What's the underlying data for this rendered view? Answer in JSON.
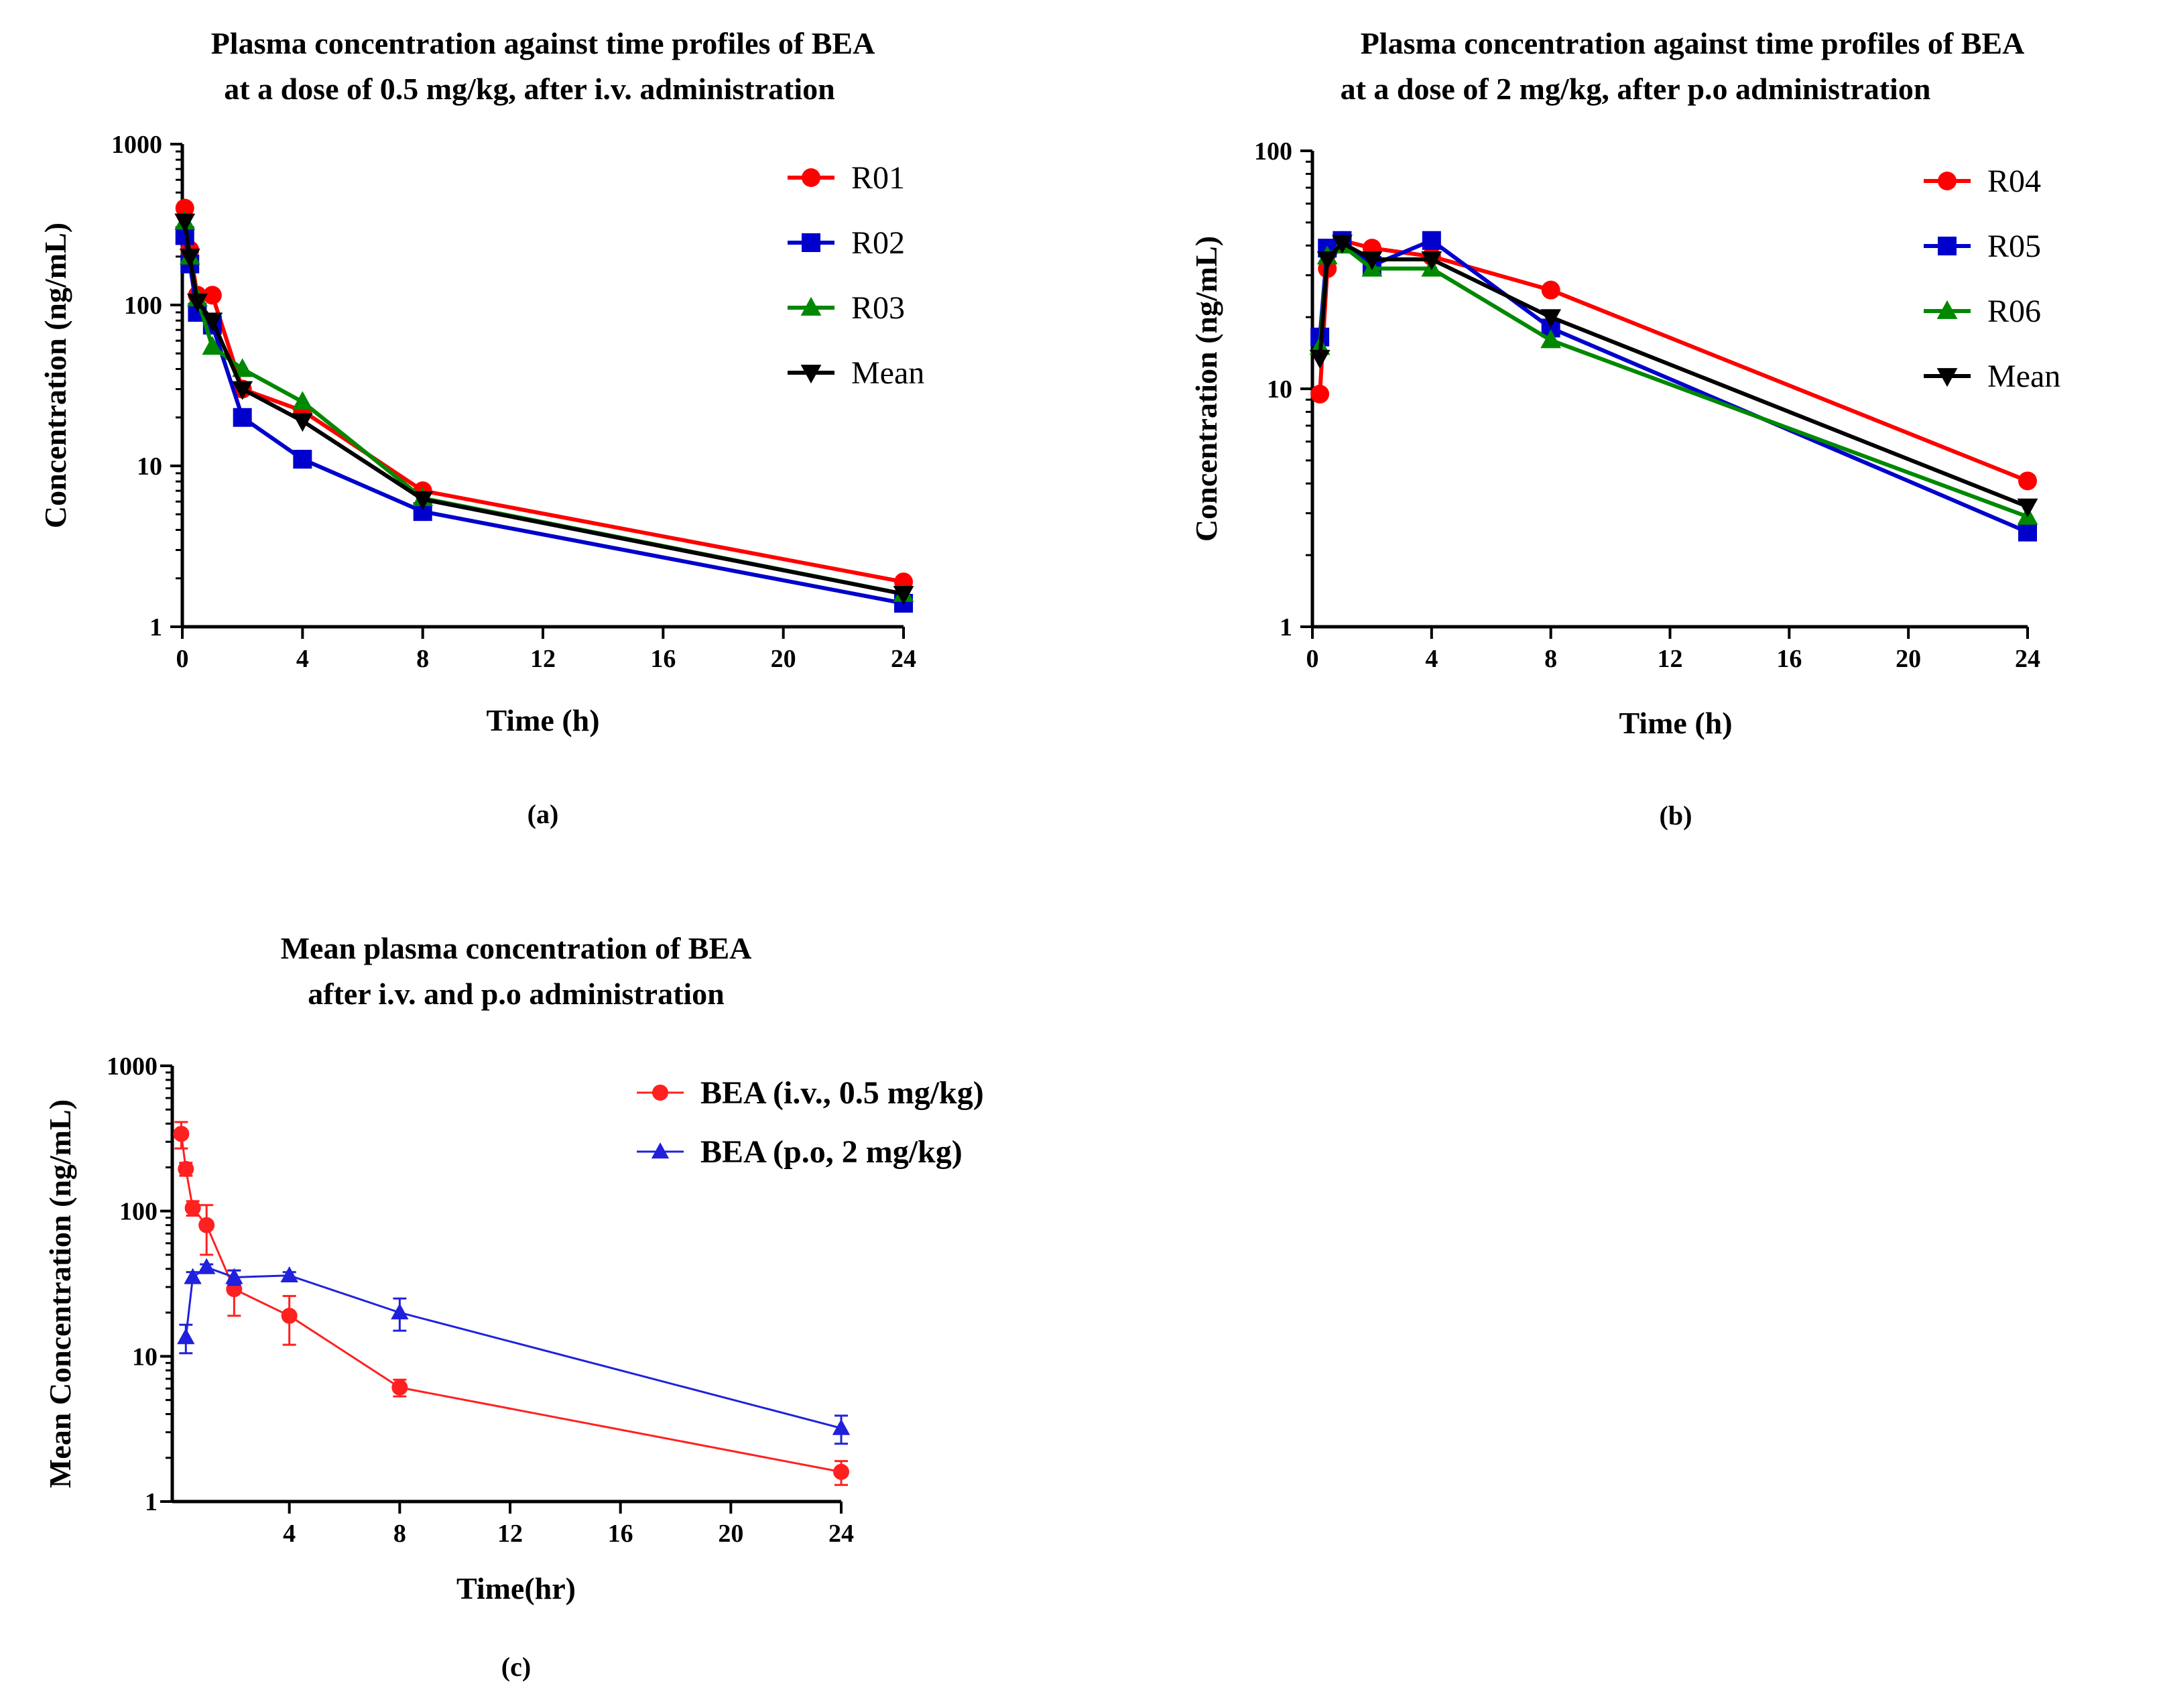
{
  "chart_data": [
    {
      "id": "a",
      "type": "line",
      "panel_label": "(a)",
      "title_lines": [
        "Plasma concentration against time profiles of BEA",
        "at a dose of 0.5 mg/kg, after i.v. administration"
      ],
      "xlabel": "Time (h)",
      "ylabel": "Concentration (ng/mL)",
      "xlim": [
        0,
        24
      ],
      "ylim": [
        1,
        1000
      ],
      "yscale": "log",
      "xticks": [
        0,
        4,
        8,
        12,
        16,
        20,
        24
      ],
      "yticks": [
        1,
        10,
        100,
        1000
      ],
      "ytick_labels": [
        "1",
        "10",
        "100",
        "1000"
      ],
      "legend_position": "top-right",
      "series": [
        {
          "name": "R01",
          "color": "#ff0000",
          "marker": "circle",
          "x": [
            0.083,
            0.25,
            0.5,
            1,
            2,
            4,
            8,
            24
          ],
          "y": [
            400,
            220,
            115,
            115,
            30,
            22,
            7,
            1.9
          ]
        },
        {
          "name": "R02",
          "color": "#0000cc",
          "marker": "square",
          "x": [
            0.083,
            0.25,
            0.5,
            1,
            2,
            4,
            8,
            24
          ],
          "y": [
            270,
            180,
            90,
            75,
            20,
            11,
            5.2,
            1.4
          ]
        },
        {
          "name": "R03",
          "color": "#008800",
          "marker": "triangle-up",
          "x": [
            0.083,
            0.25,
            0.5,
            1,
            2,
            4,
            8,
            24
          ],
          "y": [
            330,
            200,
            110,
            55,
            40,
            25,
            6.3,
            1.6
          ]
        },
        {
          "name": "Mean",
          "color": "#000000",
          "marker": "triangle-down",
          "x": [
            0.083,
            0.25,
            0.5,
            1,
            2,
            4,
            8,
            24
          ],
          "y": [
            330,
            200,
            105,
            80,
            30,
            19,
            6.2,
            1.6
          ]
        }
      ]
    },
    {
      "id": "b",
      "type": "line",
      "panel_label": "(b)",
      "title_lines": [
        "Plasma concentration against time profiles of BEA",
        "at a dose of 2 mg/kg, after p.o administration"
      ],
      "xlabel": "Time (h)",
      "ylabel": "Concentration (ng/mL)",
      "xlim": [
        0,
        24
      ],
      "ylim": [
        1,
        100
      ],
      "yscale": "log",
      "xticks": [
        0,
        4,
        8,
        12,
        16,
        20,
        24
      ],
      "yticks": [
        1,
        10,
        100
      ],
      "ytick_labels": [
        "1",
        "10",
        "100"
      ],
      "legend_position": "top-right",
      "series": [
        {
          "name": "R04",
          "color": "#ff0000",
          "marker": "circle",
          "x": [
            0.25,
            0.5,
            1,
            2,
            4,
            8,
            24
          ],
          "y": [
            9.5,
            32,
            42,
            39,
            36,
            26,
            4.1
          ]
        },
        {
          "name": "R05",
          "color": "#0000cc",
          "marker": "square",
          "x": [
            0.25,
            0.5,
            1,
            2,
            4,
            8,
            24
          ],
          "y": [
            16.5,
            39,
            42,
            33,
            42,
            18,
            2.5
          ]
        },
        {
          "name": "R06",
          "color": "#008800",
          "marker": "triangle-up",
          "x": [
            0.25,
            0.5,
            1,
            2,
            4,
            8,
            24
          ],
          "y": [
            15,
            36,
            40,
            32,
            32,
            16,
            2.9
          ]
        },
        {
          "name": "Mean",
          "color": "#000000",
          "marker": "triangle-down",
          "x": [
            0.25,
            0.5,
            1,
            2,
            4,
            8,
            24
          ],
          "y": [
            13.5,
            35,
            41,
            35,
            35,
            20,
            3.2
          ]
        }
      ]
    },
    {
      "id": "c",
      "type": "line",
      "panel_label": "(c)",
      "title_lines": [
        "Mean plasma concentration of BEA",
        "after i.v. and p.o administration"
      ],
      "xlabel": "Time(hr)",
      "ylabel": "Mean Concentration (ng/mL)",
      "xlim": [
        0,
        24
      ],
      "ylim": [
        1,
        1000
      ],
      "yscale": "log",
      "xticks": [
        4,
        8,
        12,
        16,
        20,
        24
      ],
      "yticks": [
        1,
        10,
        100,
        1000
      ],
      "ytick_labels": [
        "1",
        "10",
        "100",
        "1000"
      ],
      "legend_position": "top-right",
      "series": [
        {
          "name": "BEA (i.v., 0.5 mg/kg)",
          "color": "#ff2020",
          "marker": "circle",
          "x": [
            0.083,
            0.25,
            0.5,
            1,
            2,
            4,
            8,
            24
          ],
          "y": [
            340,
            195,
            105,
            80,
            29,
            19,
            6.1,
            1.6
          ],
          "err": [
            70,
            20,
            12,
            30,
            10,
            7,
            0.8,
            0.3
          ]
        },
        {
          "name": "BEA (p.o, 2 mg/kg)",
          "color": "#2020dd",
          "marker": "triangle-up",
          "x": [
            0.25,
            0.5,
            1,
            2,
            4,
            8,
            24
          ],
          "y": [
            13.5,
            35,
            41,
            35,
            36,
            20,
            3.2
          ],
          "err": [
            3,
            3,
            2,
            4,
            2,
            5,
            0.7
          ]
        }
      ]
    }
  ]
}
